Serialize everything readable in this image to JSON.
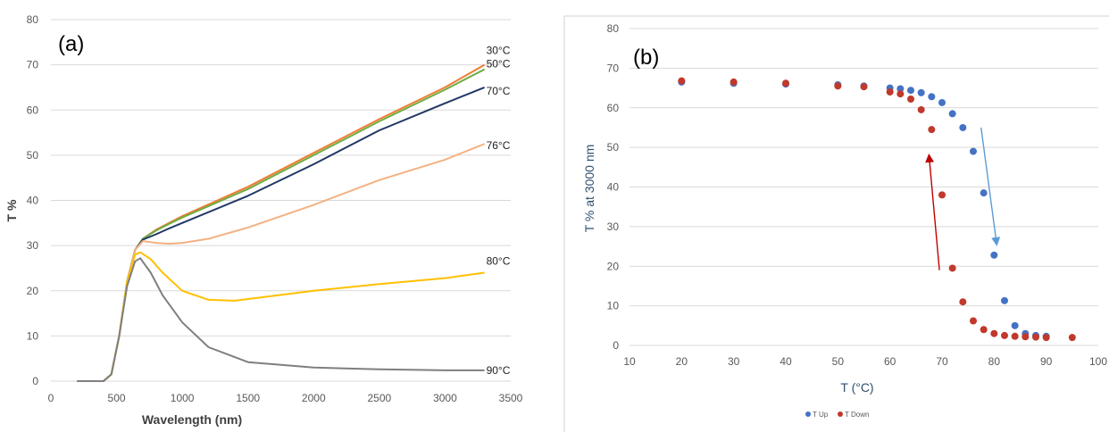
{
  "chart_data": [
    {
      "type": "line",
      "panel_label": "(a)",
      "xlabel": "Wavelength (nm)",
      "ylabel": "T %",
      "xlim": [
        0,
        3500
      ],
      "ylim": [
        0,
        80
      ],
      "xticks": [
        0,
        500,
        1000,
        1500,
        2000,
        2500,
        3000,
        3500
      ],
      "yticks": [
        0,
        10,
        20,
        30,
        40,
        50,
        60,
        70,
        80
      ],
      "grid": "horizontal",
      "series": [
        {
          "name": "30°C",
          "color": "#ed7d31",
          "x": [
            200,
            400,
            460,
            520,
            580,
            640,
            700,
            800,
            900,
            1000,
            1500,
            2000,
            2500,
            3000,
            3300
          ],
          "y": [
            0,
            0,
            1.5,
            10,
            22,
            29,
            31.5,
            33.5,
            35,
            36.5,
            43,
            50.5,
            58,
            65,
            70
          ]
        },
        {
          "name": "50°C",
          "color": "#70ad47",
          "x": [
            200,
            400,
            460,
            520,
            580,
            640,
            700,
            800,
            900,
            1000,
            1500,
            2000,
            2500,
            3000,
            3300
          ],
          "y": [
            0,
            0,
            1.5,
            10,
            22,
            29,
            31.5,
            33.3,
            34.8,
            36.2,
            42.5,
            50,
            57.5,
            64.5,
            69
          ]
        },
        {
          "name": "70°C",
          "color": "#203864",
          "x": [
            200,
            400,
            460,
            520,
            580,
            640,
            700,
            800,
            900,
            1000,
            1500,
            2000,
            2500,
            3000,
            3300
          ],
          "y": [
            0,
            0,
            1.5,
            10,
            22,
            29,
            31.3,
            32.5,
            33.8,
            35,
            41,
            48,
            55.5,
            61.5,
            65
          ]
        },
        {
          "name": "76°C",
          "color": "#f4b183",
          "x": [
            200,
            400,
            460,
            520,
            580,
            640,
            700,
            800,
            900,
            1000,
            1200,
            1500,
            2000,
            2500,
            3000,
            3300
          ],
          "y": [
            0,
            0,
            1.5,
            10,
            22,
            29,
            31,
            30.6,
            30.4,
            30.6,
            31.5,
            34,
            39,
            44.5,
            49,
            52.5
          ]
        },
        {
          "name": "80°C",
          "color": "#ffc000",
          "x": [
            200,
            400,
            460,
            520,
            580,
            640,
            680,
            760,
            850,
            1000,
            1200,
            1400,
            2000,
            2500,
            3000,
            3300
          ],
          "y": [
            0,
            0,
            1.5,
            10,
            22,
            28,
            28.5,
            27,
            24,
            20,
            18,
            17.8,
            20,
            21.5,
            22.8,
            24
          ]
        },
        {
          "name": "90°C",
          "color": "#7f7f7f",
          "x": [
            200,
            400,
            460,
            520,
            580,
            640,
            680,
            760,
            850,
            1000,
            1200,
            1500,
            2000,
            2500,
            3000,
            3300
          ],
          "y": [
            0,
            0,
            1.5,
            10,
            21,
            26.5,
            27.2,
            24,
            19,
            13,
            7.5,
            4.2,
            3,
            2.6,
            2.4,
            2.4
          ]
        }
      ]
    },
    {
      "type": "scatter",
      "panel_label": "(b)",
      "xlabel": "T (°C)",
      "ylabel": "T % at 3000 nm",
      "xlim": [
        10,
        100
      ],
      "ylim": [
        0,
        80
      ],
      "xticks": [
        10,
        20,
        30,
        40,
        50,
        60,
        70,
        80,
        90,
        100
      ],
      "yticks": [
        0,
        10,
        20,
        30,
        40,
        50,
        60,
        70,
        80
      ],
      "grid": "horizontal",
      "legend_position": "bottom",
      "series": [
        {
          "name": "T Up",
          "color": "#4472c4",
          "x": [
            20,
            30,
            40,
            50,
            55,
            60,
            62,
            64,
            66,
            68,
            70,
            72,
            74,
            76,
            78,
            80,
            82,
            84,
            86,
            88,
            90
          ],
          "y": [
            66.5,
            66.2,
            66,
            65.8,
            65.5,
            65,
            64.8,
            64.4,
            63.8,
            62.8,
            61.3,
            58.5,
            55,
            49,
            38.5,
            22.8,
            11.3,
            5,
            3,
            2.5,
            2.3
          ]
        },
        {
          "name": "T Down",
          "color": "#c0392b",
          "x": [
            20,
            30,
            40,
            50,
            55,
            60,
            62,
            64,
            66,
            68,
            70,
            72,
            74,
            76,
            78,
            80,
            82,
            84,
            86,
            88,
            90,
            95
          ],
          "y": [
            66.8,
            66.5,
            66.2,
            65.5,
            65.3,
            64,
            63.5,
            62.2,
            59.5,
            54.5,
            38,
            19.5,
            11,
            6.2,
            4,
            3,
            2.5,
            2.3,
            2.2,
            2.1,
            2,
            2
          ]
        }
      ],
      "annotations": [
        {
          "type": "arrow",
          "color": "#c00000",
          "from": [
            69.5,
            19
          ],
          "to": [
            67.5,
            48
          ]
        },
        {
          "type": "arrow",
          "color": "#5b9bd5",
          "from": [
            77.5,
            55
          ],
          "to": [
            80.5,
            25.5
          ]
        }
      ]
    }
  ]
}
